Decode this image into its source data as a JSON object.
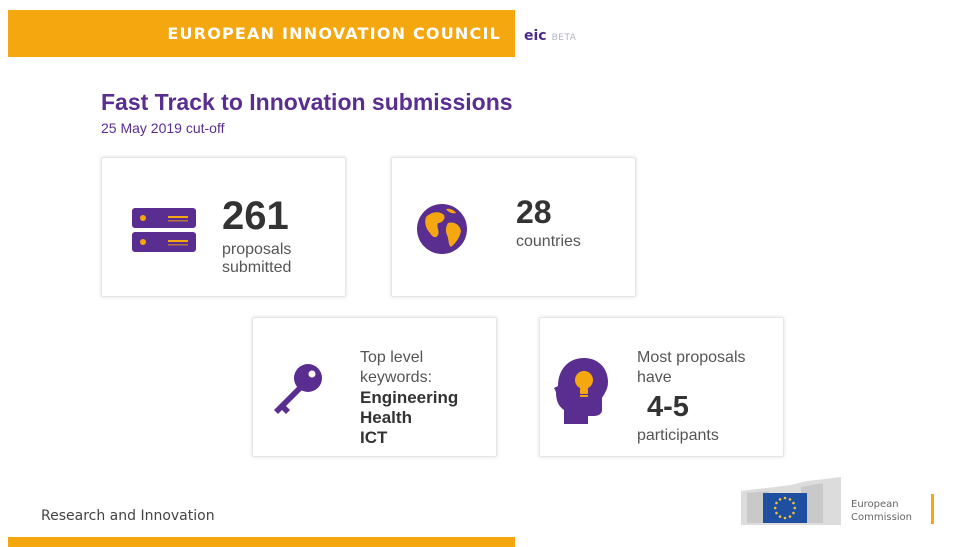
{
  "header": {
    "council": "EUROPEAN INNOVATION COUNCIL",
    "eic": "eic",
    "beta": "BETA",
    "accent_color": "#f4a70e"
  },
  "title": "Fast Track to Innovation submissions",
  "subtitle": "25 May 2019 cut-off",
  "stats": {
    "proposals": {
      "value": "261",
      "label": "proposals submitted",
      "icon": "server-icon"
    },
    "countries": {
      "value": "28",
      "label": "countries",
      "icon": "globe-icon"
    },
    "keywords": {
      "label": "Top level keywords:",
      "items": [
        "Engineering",
        "Health",
        "ICT"
      ],
      "icon": "key-icon"
    },
    "participants": {
      "label": "Most proposals have",
      "value": "4-5",
      "sublabel": "participants",
      "icon": "head-lightbulb-icon"
    }
  },
  "footer": {
    "left_text": "Research and Innovation",
    "org_line1": "European",
    "org_line2": "Commission"
  },
  "colors": {
    "purple": "#5a2d91",
    "gold": "#f4a70e",
    "dark_purple": "#4b2a88"
  }
}
